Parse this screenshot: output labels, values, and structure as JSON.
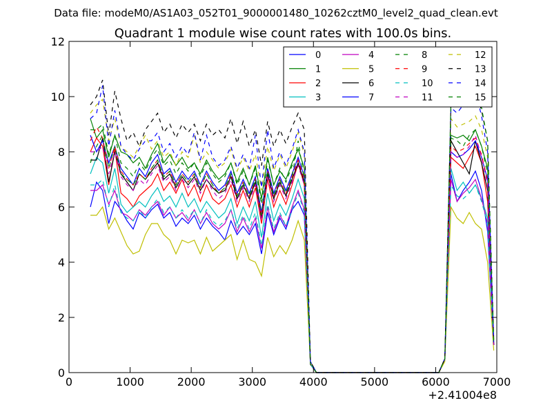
{
  "chart_data": {
    "type": "line",
    "suptitle": "Data file: modeM0/AS1A03_052T01_9000001480_10262cztM0_level2_quad_clean.evt",
    "title": "Quadrant 1 module wise count rates with 100.0s bins.",
    "xlabel": "",
    "ylabel": "",
    "xlim": [
      0,
      7000
    ],
    "ylim": [
      0,
      12
    ],
    "x_offset_label": "+2.41004e8",
    "xticks": [
      0,
      1000,
      2000,
      3000,
      4000,
      5000,
      6000,
      7000
    ],
    "yticks": [
      0,
      2,
      4,
      6,
      8,
      10,
      12
    ],
    "legend_position": "top-right",
    "x": [
      350,
      450,
      550,
      650,
      750,
      850,
      950,
      1050,
      1150,
      1250,
      1350,
      1450,
      1550,
      1650,
      1750,
      1850,
      1950,
      2050,
      2150,
      2250,
      2350,
      2450,
      2550,
      2650,
      2750,
      2850,
      2950,
      3050,
      3150,
      3250,
      3350,
      3450,
      3550,
      3650,
      3750,
      3850,
      3950,
      4050,
      4150,
      4250,
      4350,
      4450,
      4550,
      4650,
      4750,
      4850,
      4950,
      5050,
      5150,
      5250,
      5350,
      5450,
      5550,
      5650,
      5750,
      5850,
      5950,
      6050,
      6150,
      6250,
      6350,
      6450,
      6550,
      6650,
      6750,
      6850,
      6950
    ],
    "series": [
      {
        "name": "0",
        "color": "#0000ff",
        "dash": "solid",
        "values": [
          6.0,
          6.9,
          6.6,
          5.4,
          6.2,
          5.9,
          5.5,
          5.2,
          5.8,
          5.6,
          5.9,
          6.1,
          5.6,
          5.8,
          5.3,
          5.6,
          5.4,
          5.7,
          5.2,
          5.6,
          5.3,
          5.1,
          4.8,
          5.5,
          5.0,
          5.3,
          5.0,
          5.4,
          4.3,
          5.8,
          5.0,
          5.6,
          5.2,
          5.9,
          6.2,
          5.7,
          0.3,
          0,
          0,
          0,
          0,
          0,
          0,
          0,
          0,
          0,
          0,
          0,
          0,
          0,
          0,
          0,
          0,
          0,
          0,
          0,
          0,
          0,
          0.5,
          7.2,
          6.2,
          6.6,
          6.9,
          7.3,
          6.6,
          5.1,
          1.0
        ]
      },
      {
        "name": "1",
        "color": "#008000",
        "dash": "solid",
        "values": [
          9.2,
          8.5,
          8.8,
          7.8,
          8.6,
          8.0,
          7.9,
          7.6,
          7.8,
          7.4,
          7.9,
          8.3,
          7.6,
          7.9,
          7.5,
          7.8,
          7.4,
          7.6,
          7.2,
          7.7,
          7.3,
          7.0,
          7.2,
          7.6,
          6.9,
          7.4,
          6.8,
          7.5,
          6.3,
          7.8,
          6.8,
          7.3,
          7.0,
          7.6,
          8.1,
          7.4,
          0.3,
          0,
          0,
          0,
          0,
          0,
          0,
          0,
          0,
          0,
          0,
          0,
          0,
          0,
          0,
          0,
          0,
          0,
          0,
          0,
          0,
          0,
          0.5,
          8.6,
          8.5,
          8.6,
          8.4,
          8.8,
          8.2,
          7.4,
          1.0
        ]
      },
      {
        "name": "2",
        "color": "#ff0000",
        "dash": "solid",
        "values": [
          8.0,
          8.5,
          8.2,
          6.8,
          8.1,
          6.5,
          6.3,
          6.0,
          6.4,
          6.6,
          6.8,
          7.2,
          6.6,
          6.9,
          6.5,
          7.0,
          6.4,
          6.8,
          6.2,
          6.8,
          6.3,
          6.1,
          6.3,
          6.8,
          6.0,
          6.6,
          6.0,
          6.7,
          5.4,
          7.0,
          6.0,
          6.6,
          6.1,
          6.8,
          7.6,
          6.8,
          0.3,
          0,
          0,
          0,
          0,
          0,
          0,
          0,
          0,
          0,
          0,
          0,
          0,
          0,
          0,
          0,
          0,
          0,
          0,
          0,
          0,
          0,
          0.5,
          7.8,
          7.6,
          7.4,
          7.8,
          8.2,
          7.6,
          6.2,
          1.0
        ]
      },
      {
        "name": "3",
        "color": "#00bfbf",
        "dash": "solid",
        "values": [
          7.2,
          7.8,
          7.6,
          6.5,
          7.4,
          6.1,
          5.8,
          6.0,
          6.2,
          6.0,
          6.4,
          6.7,
          6.2,
          6.4,
          6.0,
          6.5,
          6.0,
          6.3,
          5.8,
          6.2,
          5.9,
          5.6,
          5.8,
          6.3,
          5.4,
          6.0,
          5.5,
          6.2,
          4.9,
          6.5,
          5.5,
          6.1,
          5.7,
          6.3,
          7.0,
          6.3,
          0.3,
          0,
          0,
          0,
          0,
          0,
          0,
          0,
          0,
          0,
          0,
          0,
          0,
          0,
          0,
          0,
          0,
          0,
          0,
          0,
          0,
          0,
          0.5,
          7.4,
          6.6,
          6.9,
          6.5,
          6.8,
          6.3,
          5.6,
          1.0
        ]
      },
      {
        "name": "4",
        "color": "#bf00bf",
        "dash": "solid",
        "values": [
          6.6,
          6.6,
          6.8,
          6.1,
          6.6,
          5.8,
          5.7,
          5.5,
          5.9,
          5.7,
          6.0,
          6.2,
          5.7,
          6.0,
          5.6,
          5.8,
          5.5,
          5.9,
          5.4,
          5.8,
          5.4,
          5.2,
          5.4,
          5.9,
          5.1,
          5.6,
          5.1,
          5.6,
          4.5,
          6.0,
          5.1,
          5.7,
          5.3,
          6.0,
          6.6,
          5.9,
          0.3,
          0,
          0,
          0,
          0,
          0,
          0,
          0,
          0,
          0,
          0,
          0,
          0,
          0,
          0,
          0,
          0,
          0,
          0,
          0,
          0,
          0,
          0.5,
          7.0,
          6.2,
          6.5,
          6.7,
          7.0,
          6.3,
          5.4,
          1.0
        ]
      },
      {
        "name": "5",
        "color": "#bfbf00",
        "dash": "solid",
        "values": [
          5.7,
          5.7,
          6.0,
          5.2,
          5.6,
          5.1,
          4.6,
          4.3,
          4.4,
          5.0,
          5.4,
          5.4,
          5.0,
          4.8,
          4.3,
          4.8,
          4.7,
          4.8,
          4.3,
          4.9,
          4.4,
          4.6,
          4.8,
          5.0,
          4.1,
          4.8,
          4.1,
          4.0,
          3.5,
          4.9,
          4.2,
          4.6,
          4.3,
          4.8,
          5.5,
          4.8,
          0.3,
          0,
          0,
          0,
          0,
          0,
          0,
          0,
          0,
          0,
          0,
          0,
          0,
          0,
          0,
          0,
          0,
          0,
          0,
          0,
          0,
          0,
          0.4,
          6.0,
          5.6,
          5.4,
          5.8,
          5.4,
          5.2,
          4.0,
          0.8
        ]
      },
      {
        "name": "6",
        "color": "#000000",
        "dash": "solid",
        "values": [
          7.7,
          7.7,
          8.5,
          6.9,
          8.0,
          7.2,
          6.9,
          6.6,
          7.2,
          7.0,
          7.3,
          7.6,
          7.0,
          7.2,
          6.7,
          7.1,
          6.8,
          7.1,
          6.6,
          7.0,
          6.7,
          6.5,
          6.6,
          7.1,
          6.3,
          6.8,
          6.3,
          6.9,
          5.6,
          7.2,
          6.3,
          6.9,
          6.4,
          7.0,
          7.6,
          6.9,
          0.3,
          0,
          0,
          0,
          0,
          0,
          0,
          0,
          0,
          0,
          0,
          0,
          0,
          0,
          0,
          0,
          0,
          0,
          0,
          0,
          0,
          0,
          0.5,
          8.4,
          8.0,
          7.6,
          7.2,
          8.4,
          7.6,
          6.6,
          1.0
        ]
      },
      {
        "name": "7",
        "color": "#0000ff",
        "dash": "solid",
        "values": [
          8.6,
          8.0,
          8.4,
          7.6,
          8.2,
          7.4,
          7.1,
          6.8,
          7.4,
          7.1,
          7.6,
          7.9,
          7.2,
          7.4,
          6.9,
          7.3,
          7.0,
          7.3,
          6.8,
          7.3,
          6.9,
          6.6,
          6.8,
          7.3,
          6.5,
          7.0,
          6.5,
          7.1,
          5.8,
          7.4,
          6.5,
          7.1,
          6.6,
          7.2,
          7.8,
          7.1,
          0.3,
          0,
          0,
          0,
          0,
          0,
          0,
          0,
          0,
          0,
          0,
          0,
          0,
          0,
          0,
          0,
          0,
          0,
          0,
          0,
          0,
          0,
          0.5,
          8.0,
          7.8,
          7.9,
          8.1,
          8.4,
          7.8,
          7.0,
          1.0
        ]
      },
      {
        "name": "8",
        "color": "#008000",
        "dash": "dashed",
        "values": [
          8.8,
          8.8,
          9.0,
          7.9,
          8.6,
          7.6,
          7.4,
          7.1,
          7.6,
          7.3,
          7.8,
          8.1,
          7.5,
          7.7,
          7.2,
          7.6,
          7.3,
          7.6,
          7.1,
          7.6,
          7.2,
          6.9,
          7.1,
          7.6,
          6.8,
          7.3,
          6.8,
          7.4,
          6.1,
          7.7,
          6.8,
          7.4,
          6.9,
          7.5,
          8.1,
          7.4,
          0.3,
          0,
          0,
          0,
          0,
          0,
          0,
          0,
          0,
          0,
          0,
          0,
          0,
          0,
          0,
          0,
          0,
          0,
          0,
          0,
          0,
          0,
          0.5,
          8.5,
          8.4,
          8.2,
          8.6,
          8.8,
          8.2,
          7.2,
          1.0
        ]
      },
      {
        "name": "9",
        "color": "#ff0000",
        "dash": "dashed",
        "values": [
          8.4,
          8.9,
          8.5,
          7.4,
          8.2,
          7.3,
          7.0,
          6.8,
          7.2,
          7.0,
          7.4,
          7.7,
          7.1,
          7.3,
          6.8,
          7.2,
          6.9,
          7.2,
          6.7,
          7.2,
          6.8,
          6.5,
          6.7,
          7.2,
          6.4,
          6.9,
          6.4,
          7.0,
          5.7,
          7.3,
          6.4,
          7.0,
          6.5,
          7.1,
          7.7,
          7.0,
          0.3,
          0,
          0,
          0,
          0,
          0,
          0,
          0,
          0,
          0,
          0,
          0,
          0,
          0,
          0,
          0,
          0,
          0,
          0,
          0,
          0,
          0,
          0.5,
          8.2,
          8.0,
          8.1,
          8.3,
          8.5,
          7.9,
          6.9,
          1.0
        ]
      },
      {
        "name": "10",
        "color": "#00bfbf",
        "dash": "dashed",
        "values": [
          6.8,
          6.8,
          7.0,
          6.0,
          6.8,
          5.8,
          5.6,
          5.5,
          5.9,
          5.6,
          6.0,
          6.3,
          5.8,
          6.0,
          5.6,
          5.9,
          5.6,
          5.9,
          5.4,
          5.9,
          5.5,
          5.3,
          5.5,
          5.9,
          5.2,
          5.7,
          5.2,
          5.8,
          4.6,
          6.1,
          5.2,
          5.8,
          5.3,
          5.9,
          6.5,
          5.8,
          0.3,
          0,
          0,
          0,
          0,
          0,
          0,
          0,
          0,
          0,
          0,
          0,
          0,
          0,
          0,
          0,
          0,
          0,
          0,
          0,
          0,
          0,
          0.5,
          6.8,
          6.4,
          6.3,
          6.5,
          6.8,
          6.2,
          5.4,
          1.0
        ]
      },
      {
        "name": "11",
        "color": "#bf00bf",
        "dash": "dashed",
        "values": [
          8.0,
          8.0,
          8.2,
          7.2,
          8.0,
          7.1,
          6.8,
          6.6,
          7.0,
          6.8,
          7.2,
          7.5,
          6.9,
          7.1,
          6.6,
          7.0,
          6.7,
          7.0,
          6.5,
          7.0,
          6.6,
          6.3,
          6.5,
          7.0,
          6.2,
          6.7,
          6.2,
          6.8,
          5.5,
          7.1,
          6.2,
          6.8,
          6.3,
          6.9,
          7.5,
          6.8,
          0.3,
          0,
          0,
          0,
          0,
          0,
          0,
          0,
          0,
          0,
          0,
          0,
          0,
          0,
          0,
          0,
          0,
          0,
          0,
          0,
          0,
          0,
          0.5,
          8.0,
          7.8,
          7.9,
          8.2,
          8.6,
          7.8,
          6.8,
          1.0
        ]
      },
      {
        "name": "12",
        "color": "#bfbf00",
        "dash": "dashed",
        "values": [
          9.4,
          9.7,
          9.9,
          8.4,
          9.2,
          8.2,
          8.0,
          7.8,
          8.2,
          8.6,
          8.1,
          8.4,
          7.8,
          8.0,
          7.5,
          8.0,
          7.8,
          8.6,
          7.6,
          8.0,
          7.7,
          7.4,
          7.6,
          8.1,
          7.3,
          7.8,
          7.3,
          7.9,
          6.6,
          8.2,
          7.3,
          7.9,
          7.4,
          8.0,
          8.7,
          7.9,
          0.4,
          0,
          0,
          0,
          0,
          0,
          0,
          0,
          0,
          0,
          0,
          0,
          0,
          0,
          0,
          0,
          0,
          0,
          0,
          0,
          0,
          0,
          0.5,
          9.2,
          8.9,
          9.0,
          9.1,
          9.3,
          8.8,
          7.8,
          1.1
        ]
      },
      {
        "name": "13",
        "color": "#000000",
        "dash": "dashed",
        "values": [
          9.7,
          10.0,
          10.6,
          8.6,
          10.2,
          9.2,
          8.4,
          8.7,
          8.2,
          8.8,
          9.1,
          9.4,
          8.7,
          9.0,
          8.5,
          9.0,
          8.7,
          9.0,
          8.4,
          9.0,
          8.6,
          8.8,
          8.5,
          9.2,
          8.3,
          9.1,
          8.2,
          8.8,
          7.5,
          9.1,
          8.2,
          8.8,
          8.3,
          8.9,
          9.4,
          8.8,
          0.4,
          0,
          0,
          0,
          0,
          0,
          0,
          0,
          0,
          0,
          0,
          0,
          0,
          0,
          0,
          0,
          0,
          0,
          0,
          0,
          0,
          0,
          0.5,
          9.8,
          9.6,
          9.9,
          9.8,
          10.2,
          9.5,
          8.4,
          1.2
        ]
      },
      {
        "name": "14",
        "color": "#0000ff",
        "dash": "dashed",
        "values": [
          9.2,
          9.4,
          10.4,
          8.2,
          9.5,
          8.2,
          7.9,
          7.7,
          8.1,
          8.4,
          8.4,
          8.7,
          8.0,
          8.3,
          7.8,
          8.2,
          7.9,
          8.7,
          7.7,
          8.6,
          7.8,
          7.5,
          7.7,
          8.2,
          7.4,
          7.9,
          7.4,
          8.6,
          6.7,
          8.8,
          7.4,
          8.0,
          7.5,
          8.1,
          8.8,
          8.0,
          0.4,
          0,
          0,
          0,
          0,
          0,
          0,
          0,
          0,
          0,
          0,
          0,
          0,
          0,
          0,
          0,
          0,
          0,
          0,
          0,
          0,
          0,
          0.5,
          9.6,
          9.4,
          9.7,
          9.6,
          10.2,
          9.3,
          8.0,
          1.1
        ]
      },
      {
        "name": "15",
        "color": "#008000",
        "dash": "dashed",
        "values": [
          7.6,
          8.2,
          8.6,
          7.4,
          8.2,
          7.2,
          7.0,
          6.8,
          7.2,
          7.0,
          7.4,
          7.7,
          7.1,
          7.3,
          6.8,
          7.2,
          6.9,
          7.2,
          6.7,
          7.2,
          6.8,
          6.5,
          6.7,
          7.2,
          6.4,
          6.9,
          6.4,
          7.0,
          5.7,
          7.3,
          6.4,
          7.0,
          6.5,
          7.1,
          8.4,
          7.0,
          0.3,
          0,
          0,
          0,
          0,
          0,
          0,
          0,
          0,
          0,
          0,
          0,
          0,
          0,
          0,
          0,
          0,
          0,
          0,
          0,
          0,
          0,
          0.5,
          9.9,
          9.6,
          9.8,
          9.7,
          10.0,
          9.6,
          8.4,
          1.1
        ]
      }
    ]
  }
}
